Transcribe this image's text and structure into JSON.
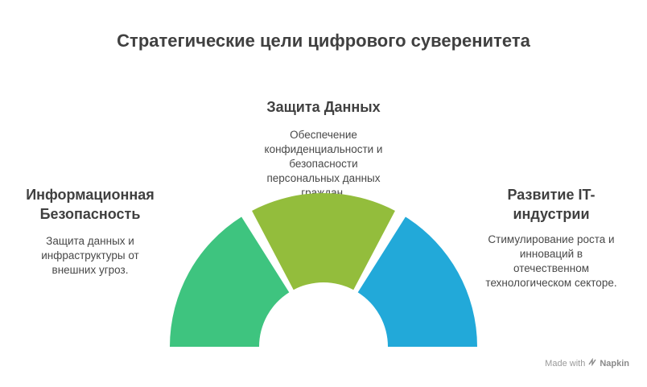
{
  "title": "Стратегические цели цифрового суверенитета",
  "segments": [
    {
      "heading_lines": [
        "Информационная",
        "Безопасность"
      ],
      "desc_lines": [
        "Защита данных и",
        "инфраструктуры от",
        "внешних угроз."
      ],
      "color": "#3ec47f"
    },
    {
      "heading_lines": [
        "Защита Данных"
      ],
      "desc_lines": [
        "Обеспечение",
        "конфиденциальности и",
        "безопасности",
        "персональных данных",
        "граждан."
      ],
      "color": "#93bd3c"
    },
    {
      "heading_lines": [
        "Развитие IT-",
        "индустрии"
      ],
      "desc_lines": [
        "Стимулирование роста и",
        "инноваций в",
        "отечественном",
        "технологическом секторе."
      ],
      "color": "#22a9d9"
    }
  ],
  "footer": {
    "made_with": "Made with",
    "brand": "Napkin"
  }
}
